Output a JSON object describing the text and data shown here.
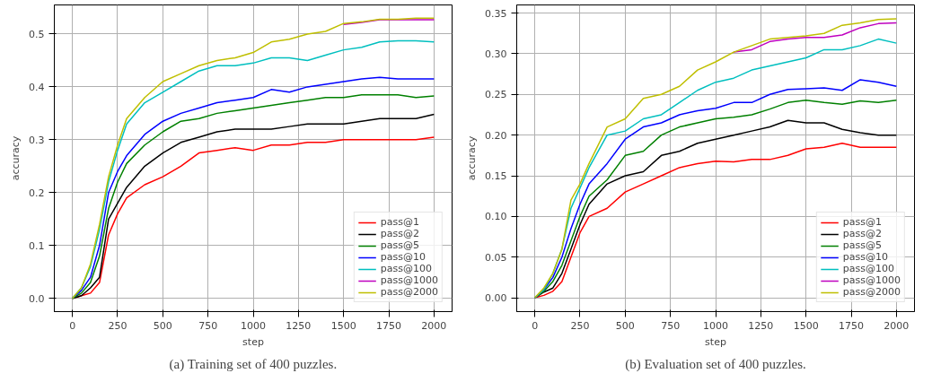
{
  "chart_data": [
    {
      "type": "line",
      "xlabel": "step",
      "ylabel": "accuracy",
      "annotations": [
        "(a) Training set of 400 puzzles."
      ],
      "x": [
        0,
        50,
        100,
        150,
        200,
        250,
        300,
        400,
        500,
        600,
        700,
        800,
        900,
        1000,
        1100,
        1200,
        1300,
        1400,
        1500,
        1600,
        1700,
        1800,
        1900,
        2000
      ],
      "xlim": [
        -100,
        2100
      ],
      "xticks": [
        0,
        250,
        500,
        750,
        1000,
        1250,
        1500,
        1750,
        2000
      ],
      "ylim": [
        -0.025,
        0.555
      ],
      "yticks": [
        {
          "value": 0,
          "label": "0.0"
        },
        {
          "value": 0.1,
          "label": "0.1"
        },
        {
          "value": 0.2,
          "label": "0.2"
        },
        {
          "value": 0.3,
          "label": "0.3"
        },
        {
          "value": 0.4,
          "label": "0.4"
        },
        {
          "value": 0.5,
          "label": "0.5"
        }
      ],
      "grid": true,
      "legend": "bottom right",
      "series": [
        {
          "name": "pass@1",
          "color": "#ff0000",
          "values": [
            0,
            0.005,
            0.01,
            0.03,
            0.12,
            0.16,
            0.19,
            0.215,
            0.23,
            0.25,
            0.275,
            0.28,
            0.285,
            0.28,
            0.29,
            0.29,
            0.295,
            0.295,
            0.3,
            0.3,
            0.3,
            0.3,
            0.3,
            0.305
          ]
        },
        {
          "name": "pass@2",
          "color": "#000000",
          "values": [
            0,
            0.005,
            0.02,
            0.04,
            0.15,
            0.18,
            0.21,
            0.25,
            0.275,
            0.295,
            0.305,
            0.315,
            0.32,
            0.32,
            0.32,
            0.325,
            0.33,
            0.33,
            0.33,
            0.335,
            0.34,
            0.34,
            0.34,
            0.348
          ]
        },
        {
          "name": "pass@5",
          "color": "#008000",
          "values": [
            0,
            0.01,
            0.03,
            0.08,
            0.17,
            0.22,
            0.255,
            0.29,
            0.315,
            0.335,
            0.34,
            0.35,
            0.355,
            0.36,
            0.365,
            0.37,
            0.375,
            0.38,
            0.38,
            0.385,
            0.385,
            0.385,
            0.38,
            0.383
          ]
        },
        {
          "name": "pass@10",
          "color": "#0000ff",
          "values": [
            0,
            0.015,
            0.04,
            0.1,
            0.2,
            0.24,
            0.27,
            0.31,
            0.335,
            0.35,
            0.36,
            0.37,
            0.375,
            0.38,
            0.395,
            0.39,
            0.4,
            0.405,
            0.41,
            0.415,
            0.418,
            0.415,
            0.415,
            0.415
          ]
        },
        {
          "name": "pass@100",
          "color": "#00bfbf",
          "values": [
            0,
            0.02,
            0.06,
            0.13,
            0.22,
            0.28,
            0.33,
            0.37,
            0.39,
            0.41,
            0.43,
            0.44,
            0.44,
            0.445,
            0.455,
            0.455,
            0.45,
            0.46,
            0.47,
            0.475,
            0.485,
            0.487,
            0.487,
            0.485
          ]
        },
        {
          "name": "pass@1000",
          "color": "#bf00bf",
          "values": [
            null,
            null,
            null,
            null,
            null,
            null,
            null,
            null,
            null,
            null,
            null,
            null,
            null,
            null,
            null,
            null,
            null,
            null,
            0.518,
            0.522,
            0.527,
            0.527,
            0.527,
            0.527
          ]
        },
        {
          "name": "pass@2000",
          "color": "#bfbf00",
          "values": [
            0,
            0.02,
            0.065,
            0.14,
            0.23,
            0.29,
            0.34,
            0.38,
            0.41,
            0.425,
            0.44,
            0.45,
            0.455,
            0.465,
            0.485,
            0.49,
            0.5,
            0.505,
            0.52,
            0.523,
            0.528,
            0.528,
            0.53,
            0.53
          ]
        }
      ]
    },
    {
      "type": "line",
      "xlabel": "step",
      "ylabel": "accuracy",
      "annotations": [
        "(b) Evaluation set of 400 puzzles."
      ],
      "x": [
        0,
        50,
        100,
        150,
        200,
        250,
        300,
        400,
        500,
        600,
        700,
        800,
        900,
        1000,
        1100,
        1200,
        1300,
        1400,
        1500,
        1600,
        1700,
        1800,
        1900,
        2000
      ],
      "xlim": [
        -100,
        2100
      ],
      "xticks": [
        0,
        250,
        500,
        750,
        1000,
        1250,
        1500,
        1750,
        2000
      ],
      "ylim": [
        -0.017,
        0.36
      ],
      "yticks": [
        {
          "value": 0,
          "label": "0.00"
        },
        {
          "value": 0.05,
          "label": "0.05"
        },
        {
          "value": 0.1,
          "label": "0.10"
        },
        {
          "value": 0.15,
          "label": "0.15"
        },
        {
          "value": 0.2,
          "label": "0.20"
        },
        {
          "value": 0.25,
          "label": "0.25"
        },
        {
          "value": 0.3,
          "label": "0.30"
        },
        {
          "value": 0.35,
          "label": "0.35"
        }
      ],
      "grid": true,
      "legend": "bottom right",
      "series": [
        {
          "name": "pass@1",
          "color": "#ff0000",
          "values": [
            0,
            0.003,
            0.008,
            0.02,
            0.05,
            0.08,
            0.1,
            0.11,
            0.13,
            0.14,
            0.15,
            0.16,
            0.165,
            0.168,
            0.167,
            0.17,
            0.17,
            0.175,
            0.183,
            0.185,
            0.19,
            0.185,
            0.185,
            0.185
          ]
        },
        {
          "name": "pass@2",
          "color": "#000000",
          "values": [
            0,
            0.007,
            0.012,
            0.03,
            0.06,
            0.09,
            0.115,
            0.14,
            0.15,
            0.155,
            0.175,
            0.18,
            0.19,
            0.195,
            0.2,
            0.205,
            0.21,
            0.218,
            0.215,
            0.215,
            0.207,
            0.203,
            0.2,
            0.2
          ]
        },
        {
          "name": "pass@5",
          "color": "#008000",
          "values": [
            0,
            0.008,
            0.02,
            0.04,
            0.07,
            0.1,
            0.125,
            0.145,
            0.175,
            0.18,
            0.2,
            0.21,
            0.215,
            0.22,
            0.222,
            0.225,
            0.232,
            0.24,
            0.243,
            0.24,
            0.238,
            0.242,
            0.24,
            0.243
          ]
        },
        {
          "name": "pass@10",
          "color": "#0000ff",
          "values": [
            0,
            0.01,
            0.025,
            0.05,
            0.085,
            0.115,
            0.14,
            0.165,
            0.195,
            0.21,
            0.215,
            0.225,
            0.23,
            0.233,
            0.24,
            0.24,
            0.25,
            0.256,
            0.257,
            0.258,
            0.255,
            0.268,
            0.265,
            0.26
          ]
        },
        {
          "name": "pass@100",
          "color": "#00bfbf",
          "values": [
            0,
            0.01,
            0.03,
            0.06,
            0.11,
            0.135,
            0.16,
            0.2,
            0.205,
            0.22,
            0.225,
            0.24,
            0.255,
            0.265,
            0.27,
            0.28,
            0.285,
            0.29,
            0.295,
            0.305,
            0.305,
            0.31,
            0.318,
            0.313
          ]
        },
        {
          "name": "pass@1000",
          "color": "#bf00bf",
          "values": [
            null,
            null,
            null,
            null,
            null,
            null,
            null,
            null,
            null,
            null,
            null,
            null,
            null,
            null,
            0.302,
            0.305,
            0.315,
            0.318,
            0.32,
            0.32,
            0.323,
            0.332,
            0.337,
            0.338
          ]
        },
        {
          "name": "pass@2000",
          "color": "#bfbf00",
          "values": [
            0,
            0.012,
            0.03,
            0.06,
            0.12,
            0.14,
            0.165,
            0.21,
            0.22,
            0.245,
            0.25,
            0.26,
            0.28,
            0.29,
            0.302,
            0.31,
            0.318,
            0.32,
            0.322,
            0.325,
            0.335,
            0.338,
            0.342,
            0.343
          ]
        }
      ]
    }
  ]
}
